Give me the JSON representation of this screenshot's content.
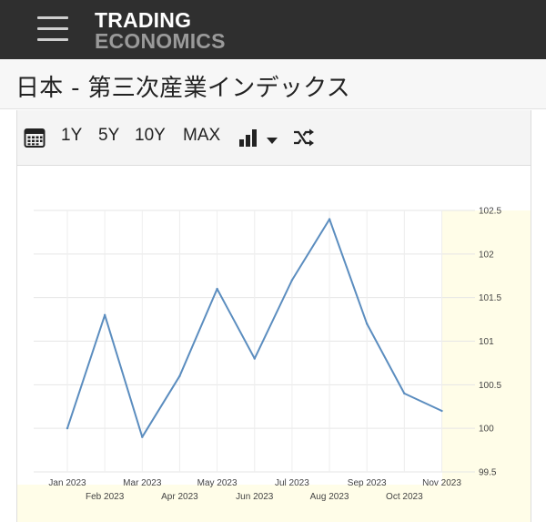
{
  "header": {
    "logo_line1": "TRADING",
    "logo_line2": "ECONOMICS"
  },
  "page": {
    "title": "日本 - 第三次産業インデックス"
  },
  "toolbar": {
    "calendar_icon": "calendar-icon",
    "ranges": [
      "1Y",
      "5Y",
      "10Y",
      "MAX"
    ],
    "chart_type_icon": "bar-chart-icon",
    "dropdown_icon": "caret-down-icon",
    "shuffle_icon": "shuffle-icon"
  },
  "colors": {
    "topbar": "#2f2f2f",
    "line": "#5b8dbf",
    "forecast_band": "#fffde8",
    "axis_text": "#444444"
  },
  "chart_data": {
    "type": "line",
    "categories": [
      "Jan 2023",
      "Feb 2023",
      "Mar 2023",
      "Apr 2023",
      "May 2023",
      "Jun 2023",
      "Jul 2023",
      "Aug 2023",
      "Sep 2023",
      "Oct 2023",
      "Nov 2023"
    ],
    "series": [
      {
        "values": [
          100.0,
          101.3,
          99.9,
          100.6,
          101.6,
          100.8,
          101.7,
          102.4,
          101.2,
          100.4,
          100.2
        ]
      }
    ],
    "ylim": [
      99.5,
      102.5
    ],
    "yticks": [
      "99.5",
      "100",
      "100.5",
      "101",
      "101.5",
      "102",
      "102.5"
    ],
    "grid": true,
    "yaxis_position": "right"
  }
}
